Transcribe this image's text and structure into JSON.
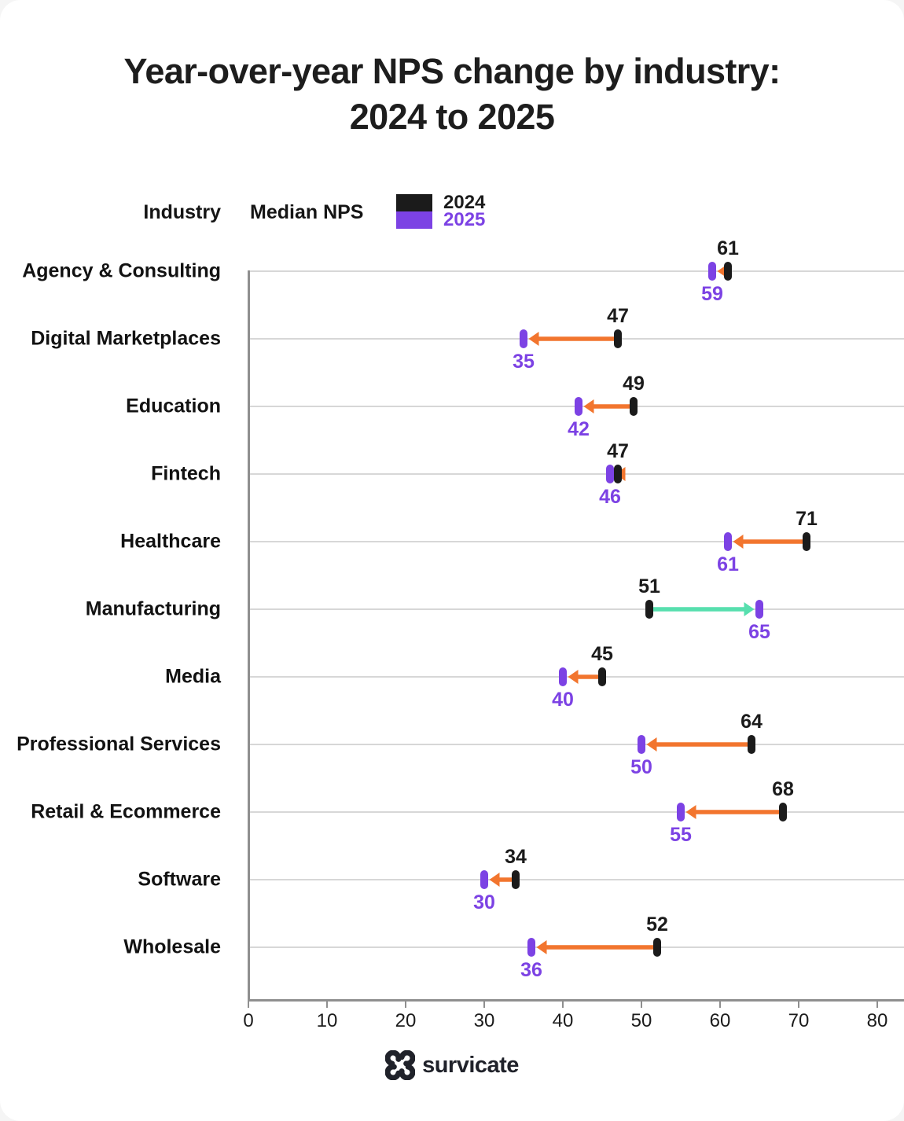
{
  "title": {
    "line1": "Year-over-year NPS change by industry:",
    "line2": "2024 to 2025"
  },
  "header": {
    "industry": "Industry",
    "median_nps": "Median NPS"
  },
  "legend": {
    "position": "top",
    "items": [
      {
        "label": "2024",
        "color": "#1b1b1b"
      },
      {
        "label": "2025",
        "color": "#7c42e4"
      }
    ]
  },
  "chart_data": {
    "type": "dumbbell",
    "orientation": "horizontal",
    "title": "Year-over-year NPS change by industry: 2024 to 2025",
    "xlabel": "",
    "ylabel": "Industry",
    "value_label": "Median NPS",
    "categories": [
      "Agency & Consulting",
      "Digital Marketplaces",
      "Education",
      "Fintech",
      "Healthcare",
      "Manufacturing",
      "Media",
      "Professional Services",
      "Retail & Ecommerce",
      "Software",
      "Wholesale"
    ],
    "series": [
      {
        "name": "2024",
        "color": "#1b1b1b",
        "values": [
          61,
          47,
          49,
          47,
          71,
          51,
          45,
          64,
          68,
          34,
          52
        ]
      },
      {
        "name": "2025",
        "color": "#7c42e4",
        "values": [
          59,
          35,
          42,
          46,
          61,
          65,
          40,
          50,
          55,
          30,
          36
        ]
      }
    ],
    "arrow_colors": {
      "decrease": "#f2752e",
      "increase": "#57dfae"
    },
    "x_ticks": [
      0,
      10,
      20,
      30,
      40,
      50,
      60,
      70,
      80
    ],
    "xlim": [
      0,
      83
    ],
    "grid": "row-lines"
  },
  "footer": {
    "brand": "survicate"
  }
}
